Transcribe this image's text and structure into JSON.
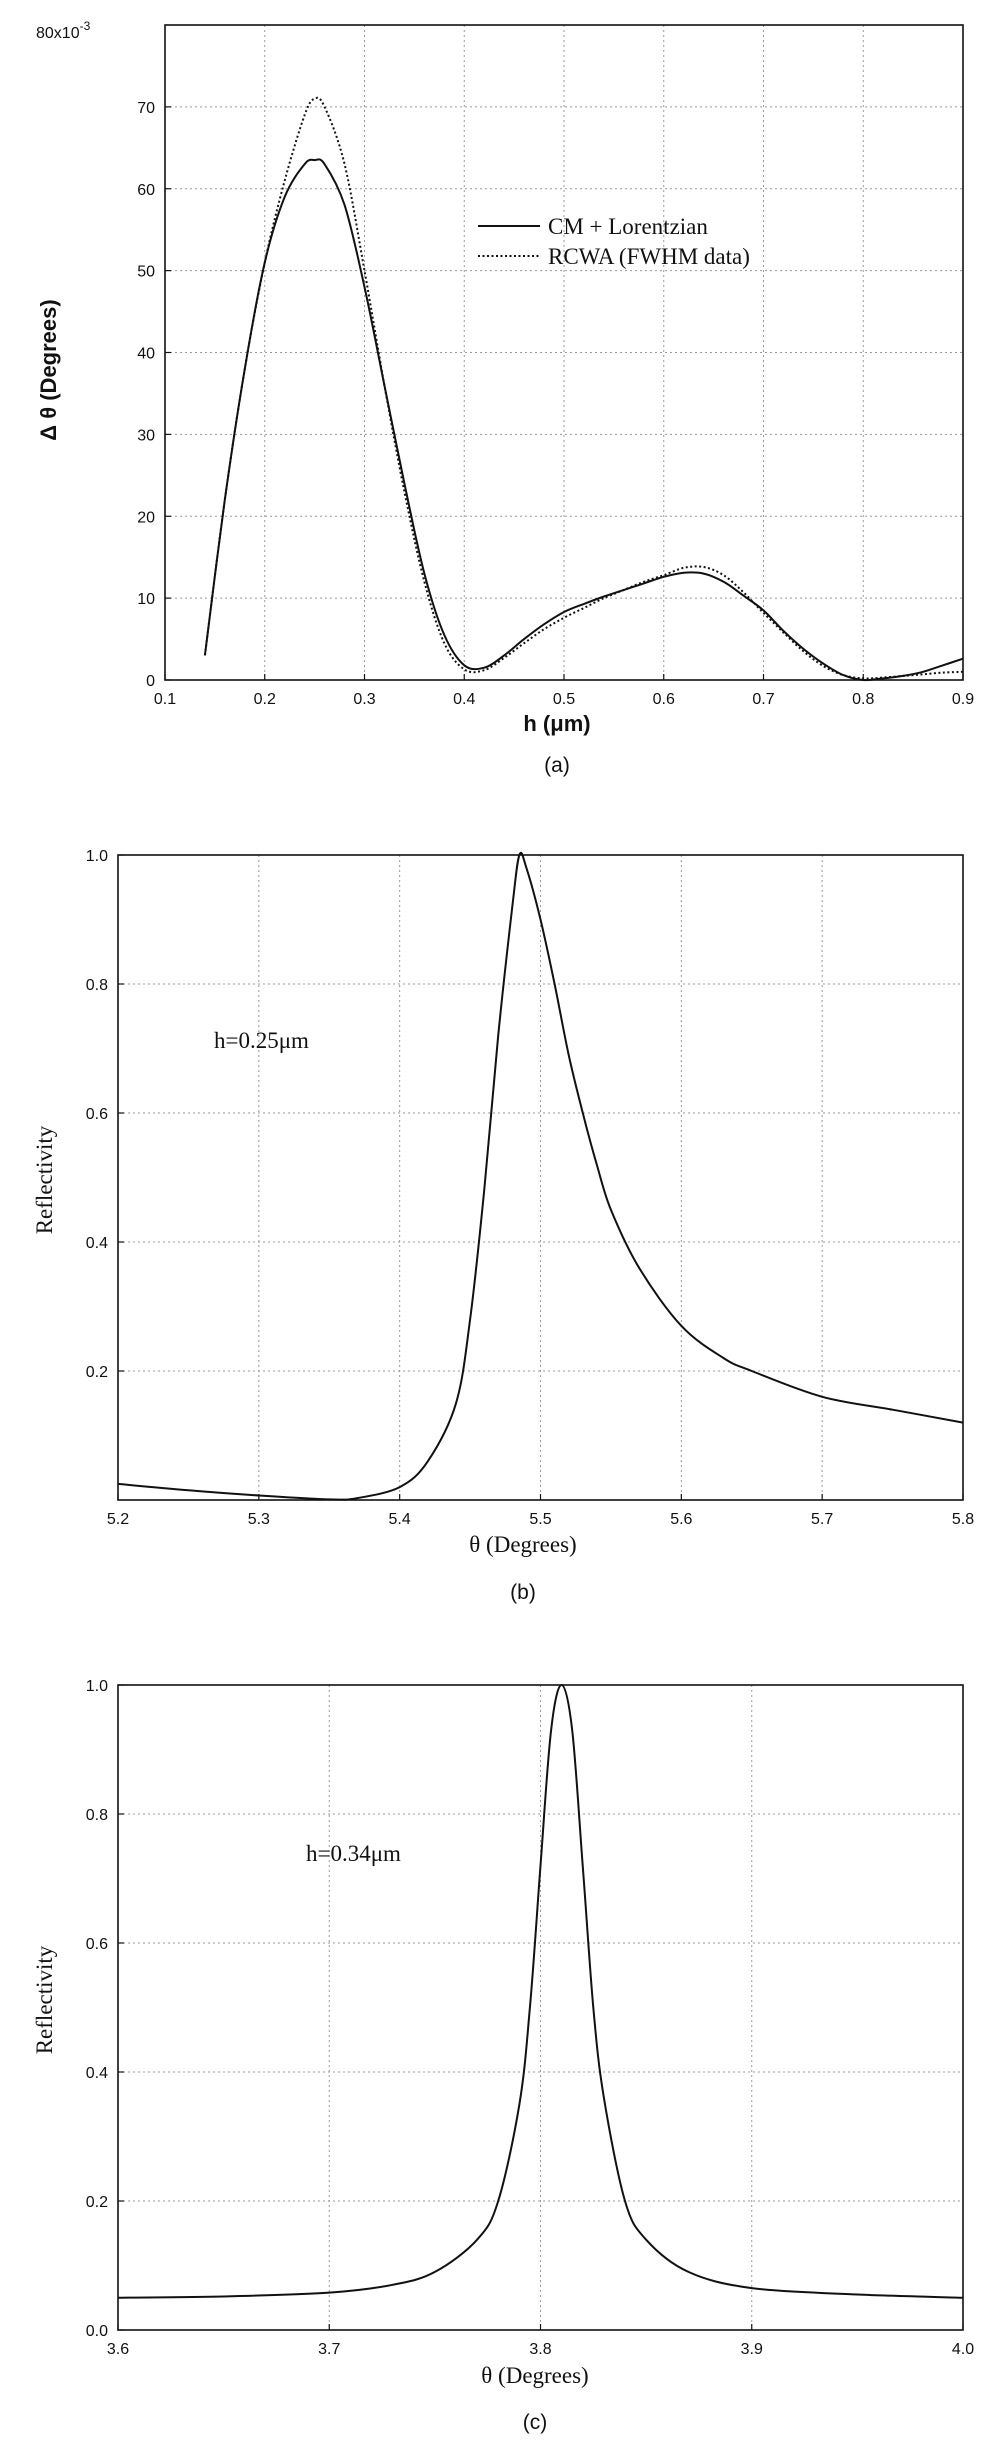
{
  "chart_data": [
    {
      "type": "line",
      "panel_label": "(a)",
      "xlabel": "h (μm)",
      "ylabel": "Δ θ (Degrees)",
      "y_multiplier_label": "80x10",
      "y_multiplier_exp": "-3",
      "xlim": [
        0.1,
        0.9
      ],
      "ylim": [
        0,
        80
      ],
      "xticks": [
        "0.1",
        "0.2",
        "0.3",
        "0.4",
        "0.5",
        "0.6",
        "0.7",
        "0.8",
        "0.9"
      ],
      "yticks": [
        "0",
        "10",
        "20",
        "30",
        "40",
        "50",
        "60",
        "70"
      ],
      "grid": true,
      "legend_position": "top-right",
      "series": [
        {
          "name": "CM + Lorentzian",
          "style": "solid",
          "x": [
            0.14,
            0.16,
            0.18,
            0.2,
            0.22,
            0.24,
            0.25,
            0.26,
            0.28,
            0.3,
            0.32,
            0.34,
            0.36,
            0.38,
            0.4,
            0.42,
            0.44,
            0.46,
            0.48,
            0.5,
            0.52,
            0.54,
            0.56,
            0.58,
            0.6,
            0.62,
            0.64,
            0.66,
            0.68,
            0.7,
            0.72,
            0.74,
            0.76,
            0.78,
            0.8,
            0.82,
            0.84,
            0.86,
            0.88,
            0.9
          ],
          "y": [
            3,
            22,
            38,
            51,
            59,
            63,
            63.5,
            63,
            58,
            48,
            36,
            24,
            13,
            5.5,
            1.8,
            1.5,
            3,
            5,
            6.8,
            8.3,
            9.3,
            10.2,
            11,
            11.8,
            12.6,
            13.1,
            13,
            12,
            10.3,
            8.5,
            6,
            3.8,
            2,
            0.6,
            0,
            0.2,
            0.5,
            1,
            1.8,
            2.6
          ]
        },
        {
          "name": "RCWA (FWHM data)",
          "style": "dotted",
          "x": [
            0.14,
            0.16,
            0.18,
            0.2,
            0.22,
            0.24,
            0.25,
            0.26,
            0.28,
            0.3,
            0.32,
            0.34,
            0.36,
            0.38,
            0.4,
            0.42,
            0.44,
            0.46,
            0.48,
            0.5,
            0.52,
            0.54,
            0.56,
            0.58,
            0.6,
            0.62,
            0.64,
            0.66,
            0.68,
            0.7,
            0.72,
            0.74,
            0.76,
            0.78,
            0.8,
            0.82,
            0.84,
            0.86,
            0.88,
            0.9
          ],
          "y": [
            3,
            22,
            38,
            51,
            61,
            69,
            71,
            70,
            63,
            50,
            36,
            23,
            12,
            4.5,
            1.3,
            1.2,
            2.7,
            4.5,
            6.2,
            7.6,
            8.8,
            10,
            11,
            12,
            12.8,
            13.7,
            13.8,
            12.8,
            10.7,
            8.2,
            5.8,
            3.5,
            1.7,
            0.6,
            0.2,
            0.3,
            0.5,
            0.7,
            0.9,
            1
          ]
        }
      ]
    },
    {
      "type": "line",
      "panel_label": "(b)",
      "xlabel": "θ (Degrees)",
      "ylabel": "Reflectivity",
      "annotation": "h=0.25μm",
      "xlim": [
        5.2,
        5.8
      ],
      "ylim": [
        0,
        1.0
      ],
      "xticks": [
        "5.2",
        "5.3",
        "5.4",
        "5.5",
        "5.6",
        "5.7",
        "5.8"
      ],
      "yticks": [
        "0.2",
        "0.4",
        "0.6",
        "0.8",
        "1.0"
      ],
      "grid": true,
      "series": [
        {
          "style": "solid",
          "x": [
            5.2,
            5.25,
            5.3,
            5.35,
            5.37,
            5.4,
            5.42,
            5.44,
            5.45,
            5.46,
            5.47,
            5.48,
            5.485,
            5.49,
            5.5,
            5.51,
            5.52,
            5.53,
            5.54,
            5.55,
            5.57,
            5.6,
            5.63,
            5.65,
            5.7,
            5.75,
            5.8
          ],
          "y": [
            0.025,
            0.015,
            0.007,
            0.001,
            0.003,
            0.02,
            0.06,
            0.15,
            0.28,
            0.48,
            0.72,
            0.92,
            1.0,
            0.98,
            0.9,
            0.8,
            0.69,
            0.6,
            0.52,
            0.45,
            0.36,
            0.27,
            0.22,
            0.2,
            0.16,
            0.14,
            0.12
          ]
        }
      ]
    },
    {
      "type": "line",
      "panel_label": "(c)",
      "xlabel": "θ (Degrees)",
      "ylabel": "Reflectivity",
      "annotation": "h=0.34μm",
      "xlim": [
        3.6,
        4.0
      ],
      "ylim": [
        0,
        1.0
      ],
      "xticks": [
        "3.6",
        "3.7",
        "3.8",
        "3.9",
        "4.0"
      ],
      "yticks": [
        "0.0",
        "0.2",
        "0.4",
        "0.6",
        "0.8",
        "1.0"
      ],
      "grid": true,
      "series": [
        {
          "style": "solid",
          "x": [
            3.6,
            3.65,
            3.7,
            3.73,
            3.75,
            3.77,
            3.78,
            3.79,
            3.795,
            3.8,
            3.805,
            3.81,
            3.815,
            3.82,
            3.825,
            3.83,
            3.84,
            3.85,
            3.87,
            3.9,
            3.95,
            4.0
          ],
          "y": [
            0.05,
            0.052,
            0.058,
            0.07,
            0.09,
            0.14,
            0.2,
            0.35,
            0.5,
            0.72,
            0.93,
            1.0,
            0.93,
            0.72,
            0.5,
            0.36,
            0.2,
            0.14,
            0.09,
            0.065,
            0.055,
            0.05
          ]
        }
      ]
    }
  ]
}
